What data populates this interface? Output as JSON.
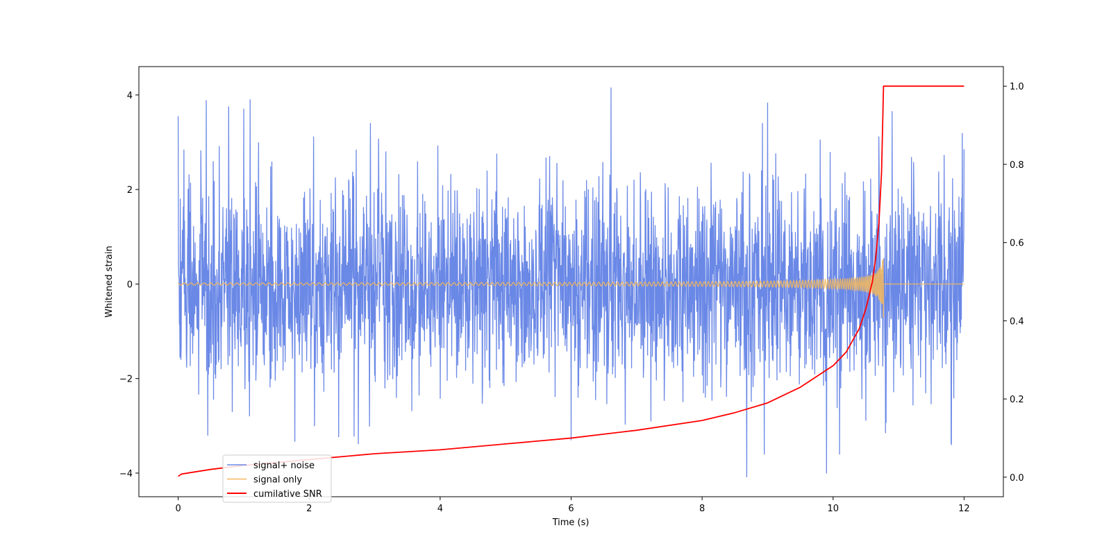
{
  "chart_data": {
    "type": "line",
    "title": "",
    "xlabel": "Time (s)",
    "ylabel": "Whitened strain",
    "y2label": "",
    "xlim": [
      -0.6,
      12.6
    ],
    "ylim": [
      -4.5,
      4.6
    ],
    "y2lim": [
      -0.05,
      1.05
    ],
    "xticks": [
      0,
      2,
      4,
      6,
      8,
      10,
      12
    ],
    "yticks": [
      -4,
      -2,
      0,
      2,
      4
    ],
    "y2ticks": [
      0.0,
      0.2,
      0.4,
      0.6,
      0.8,
      1.0
    ],
    "ytick_labels": [
      "−4",
      "−2",
      "0",
      "2",
      "4"
    ],
    "y2tick_labels": [
      "0.0",
      "0.2",
      "0.4",
      "0.6",
      "0.8",
      "1.0"
    ],
    "legend_position": "lower-left",
    "grid": false,
    "series": [
      {
        "name": "signal+ noise",
        "color": "#6a88e6",
        "axis": "left",
        "kind": "noise",
        "x_range": [
          0,
          12
        ],
        "spike_points": [
          {
            "x": 0.0,
            "y": 3.55
          },
          {
            "x": 0.43,
            "y": 3.88
          },
          {
            "x": 0.45,
            "y": -3.2
          },
          {
            "x": 0.77,
            "y": 3.75
          },
          {
            "x": 1.0,
            "y": 3.7
          },
          {
            "x": 1.1,
            "y": 3.9
          },
          {
            "x": 1.78,
            "y": -3.33
          },
          {
            "x": 2.75,
            "y": -3.38
          },
          {
            "x": 6.61,
            "y": 4.15
          },
          {
            "x": 6.0,
            "y": -3.3
          },
          {
            "x": 8.68,
            "y": -4.08
          },
          {
            "x": 8.95,
            "y": -3.6
          },
          {
            "x": 9.0,
            "y": 3.83
          },
          {
            "x": 9.9,
            "y": -4.0
          },
          {
            "x": 10.1,
            "y": -3.6
          },
          {
            "x": 10.9,
            "y": 3.65
          },
          {
            "x": 11.8,
            "y": -3.35
          },
          {
            "x": 12.0,
            "y": -3.65
          },
          {
            "x": 12.0,
            "y": 2.85
          }
        ]
      },
      {
        "name": "signal only",
        "color": "#f5b85a",
        "axis": "left",
        "kind": "chirp",
        "x_range": [
          0,
          12
        ],
        "merger_time": 10.77,
        "peak_amplitude": 0.75
      },
      {
        "name": "cumilative SNR",
        "color": "#ff0000",
        "axis": "right",
        "kind": "line",
        "x": [
          0.0,
          0.05,
          0.5,
          1.0,
          2.0,
          3.0,
          4.0,
          5.0,
          6.0,
          7.0,
          8.0,
          8.5,
          9.0,
          9.5,
          10.0,
          10.2,
          10.4,
          10.5,
          10.6,
          10.65,
          10.7,
          10.74,
          10.77,
          10.8,
          11.0,
          12.0
        ],
        "y": [
          0.002,
          0.008,
          0.02,
          0.03,
          0.045,
          0.06,
          0.07,
          0.085,
          0.1,
          0.12,
          0.145,
          0.165,
          0.19,
          0.23,
          0.285,
          0.32,
          0.38,
          0.43,
          0.5,
          0.56,
          0.65,
          0.78,
          1.0,
          1.0,
          1.0,
          1.0
        ]
      }
    ]
  }
}
